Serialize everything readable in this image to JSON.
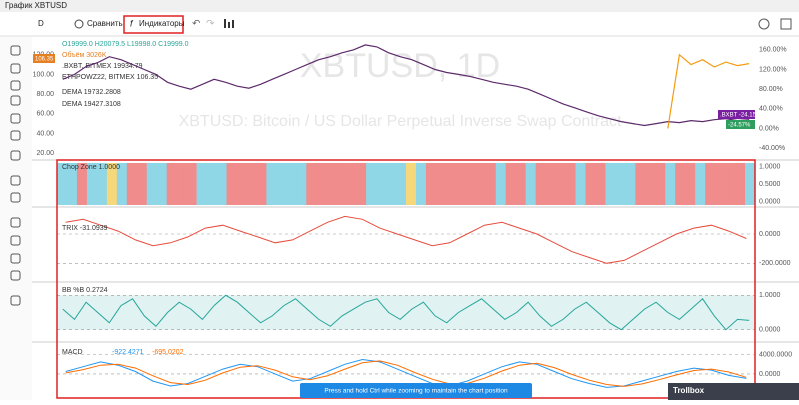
{
  "header": {
    "title": "График XBTUSD"
  },
  "toolbar": {
    "interval": "D",
    "compare": "Сравнить",
    "indicators": "Индикаторы"
  },
  "watermark": {
    "symbol": "XBTUSD, 1D",
    "description": "XBTUSD: Bitcoin / US Dollar Perpetual Inverse Swap Contract"
  },
  "legend": {
    "ohlc": "O19999.0 H20079.5 L19998.0 C19999.0",
    "volume": "Объём 3026K",
    "bxbt": ".BXBT, BITMEX 19934.79",
    "ethpow": "ETHPOWZ22, BITMEX 106.35",
    "dema1": "DEMA 19732.2808",
    "dema2": "DEMA 19427.3108"
  },
  "price_pane": {
    "ylim": [
      15,
      135
    ],
    "yticks": [
      {
        "value": 120,
        "label": "120.00"
      },
      {
        "value": 100,
        "label": "100.00"
      },
      {
        "value": 80,
        "label": "80.00"
      },
      {
        "value": 60,
        "label": "60.00"
      },
      {
        "value": 40,
        "label": "40.00"
      },
      {
        "value": 20,
        "label": "20.00"
      }
    ],
    "y2lim": [
      -60,
      180
    ],
    "y2ticks": [
      {
        "value": 160,
        "label": "160.00%"
      },
      {
        "value": 120,
        "label": "120.00%"
      },
      {
        "value": 80,
        "label": "80.00%"
      },
      {
        "value": 40,
        "label": "40.00%"
      },
      {
        "value": 0,
        "label": "0.00%"
      },
      {
        "value": -40,
        "label": "-40.00%"
      }
    ],
    "series": [
      {
        "color": "#5b2a6a",
        "values": [
          95,
          100,
          108,
          112,
          118,
          115,
          110,
          105,
          100,
          92,
          88,
          85,
          90,
          95,
          92,
          88,
          86,
          90,
          95,
          100,
          105,
          110,
          115,
          118,
          122,
          125,
          130,
          128,
          122,
          118,
          115,
          110,
          105,
          102,
          100,
          98,
          95,
          92,
          90,
          88,
          85,
          80,
          75,
          70,
          66,
          62,
          58,
          55,
          52,
          50,
          48,
          50,
          52,
          51,
          53,
          52,
          54,
          55,
          53,
          54
        ]
      },
      {
        "color": "#f39c12",
        "axis": "y2",
        "values": [
          null,
          null,
          null,
          null,
          null,
          null,
          null,
          null,
          null,
          null,
          null,
          null,
          null,
          null,
          null,
          null,
          null,
          null,
          null,
          null,
          null,
          null,
          null,
          null,
          null,
          null,
          null,
          null,
          null,
          null,
          null,
          null,
          null,
          null,
          null,
          null,
          null,
          null,
          null,
          null,
          null,
          null,
          null,
          null,
          null,
          null,
          null,
          null,
          null,
          null,
          null,
          null,
          0,
          150,
          130,
          140,
          125,
          135,
          128,
          132
        ]
      }
    ],
    "badges": {
      "bxbt": ".BXBT  -24.15%",
      "left": "106.35",
      "eth": "-24.57%"
    }
  },
  "chop_pane": {
    "label": "Chop Zone  1.0000",
    "yticks": [
      {
        "value": 1,
        "label": "1.0000"
      },
      {
        "value": 0.5,
        "label": "0.5000"
      },
      {
        "value": 0,
        "label": "0.0000"
      }
    ],
    "ylim": [
      -0.1,
      1.1
    ],
    "colors": [
      "#8fd6e6",
      "#f08c8c",
      "#f6d77a"
    ],
    "zones": [
      0,
      0,
      1,
      0,
      0,
      2,
      0,
      1,
      1,
      0,
      0,
      1,
      1,
      1,
      0,
      0,
      0,
      1,
      1,
      1,
      1,
      0,
      0,
      0,
      0,
      1,
      1,
      1,
      1,
      1,
      1,
      0,
      0,
      0,
      0,
      2,
      0,
      1,
      1,
      1,
      1,
      1,
      1,
      1,
      0,
      1,
      1,
      0,
      1,
      1,
      1,
      1,
      0,
      1,
      1,
      0,
      0,
      0,
      1,
      1,
      1,
      0,
      1,
      1,
      0,
      1,
      1,
      1,
      1,
      0
    ]
  },
  "trix_pane": {
    "label": "TRIX  -31.0939",
    "ylim": [
      -300,
      150
    ],
    "yticks": [
      {
        "value": 0,
        "label": "0.0000"
      },
      {
        "value": -200,
        "label": "-200.0000"
      }
    ],
    "color": "#e74c3c",
    "values": [
      80,
      100,
      60,
      20,
      -40,
      -80,
      -60,
      -20,
      40,
      60,
      20,
      -20,
      -60,
      -40,
      20,
      80,
      120,
      100,
      40,
      0,
      -40,
      -80,
      -60,
      0,
      60,
      80,
      40,
      0,
      -60,
      -120,
      -160,
      -200,
      -180,
      -120,
      -60,
      0,
      40,
      60,
      20,
      -31
    ]
  },
  "bb_pane": {
    "label": "BB %B  0.2724",
    "ylim": [
      -0.3,
      1.3
    ],
    "yticks": [
      {
        "value": 1,
        "label": "1.0000"
      },
      {
        "value": 0,
        "label": "0.0000"
      }
    ],
    "color": "#26a69a",
    "values": [
      0.6,
      0.3,
      0.8,
      0.5,
      0.2,
      0.7,
      0.9,
      0.4,
      0.1,
      0.5,
      0.8,
      0.6,
      0.3,
      0.7,
      1.0,
      0.8,
      0.5,
      0.2,
      0.4,
      0.7,
      0.9,
      0.6,
      0.3,
      0.1,
      0.4,
      0.6,
      0.8,
      0.9,
      0.5,
      0.3,
      0.6,
      0.8,
      0.4,
      0.2,
      0.5,
      0.7,
      0.9,
      0.6,
      0.3,
      0.5,
      0.8,
      0.4,
      0.1,
      0.3,
      0.6,
      0.8,
      0.5,
      0.2,
      0.0,
      0.3,
      0.6,
      0.8,
      0.5,
      0.3,
      0.6,
      0.9,
      0.4,
      0.0,
      0.3,
      0.27
    ]
  },
  "macd_pane": {
    "label": "MACD",
    "ylim": [
      -5000,
      6000
    ],
    "yticks": [
      {
        "value": 4000,
        "label": "4000.0000"
      },
      {
        "value": 0,
        "label": "0.0000"
      }
    ],
    "series": [
      {
        "color": "#2196f3",
        "value_label": "-922.4271",
        "values": [
          500,
          1500,
          2500,
          1800,
          500,
          -1500,
          -2500,
          -2000,
          -500,
          1000,
          2000,
          1500,
          0,
          -1500,
          -1000,
          500,
          2000,
          3000,
          2500,
          1000,
          -500,
          -2000,
          -2500,
          -1500,
          0,
          1500,
          2500,
          2000,
          500,
          -1000,
          -2000,
          -2800,
          -2500,
          -1500,
          -500,
          500,
          1200,
          800,
          -300,
          -922
        ]
      },
      {
        "color": "#ff6d00",
        "value_label": "-695.0202",
        "values": [
          200,
          900,
          1800,
          2000,
          1200,
          -400,
          -1800,
          -2200,
          -1300,
          200,
          1400,
          1700,
          800,
          -600,
          -1200,
          -400,
          1000,
          2300,
          2700,
          1800,
          300,
          -1100,
          -2100,
          -2000,
          -900,
          600,
          1800,
          2200,
          1300,
          -100,
          -1300,
          -2200,
          -2600,
          -2100,
          -1200,
          -200,
          700,
          1000,
          400,
          -695
        ]
      }
    ]
  },
  "tooltip": "Press and hold Ctrl while zooming to maintain the chart position",
  "trollbox": "Trollbox"
}
